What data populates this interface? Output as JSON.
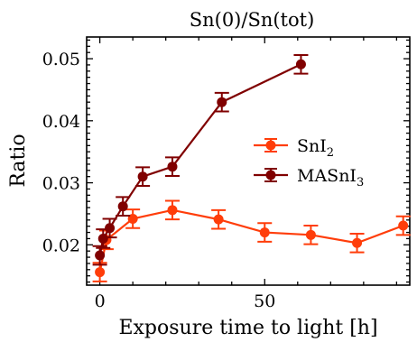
{
  "chart_data": {
    "type": "line",
    "title": "Sn(0)/Sn(tot)",
    "xlabel": "Exposure time to light [h]",
    "ylabel": "Ratio",
    "xlim": [
      -4,
      94
    ],
    "ylim": [
      0.0135,
      0.0535
    ],
    "x_ticks": [
      0,
      50
    ],
    "x_tick_labels": [
      "0",
      "50"
    ],
    "y_ticks": [
      0.02,
      0.03,
      0.04,
      0.05
    ],
    "y_tick_labels": [
      "0.02",
      "0.03",
      "0.04",
      "0.05"
    ],
    "legend_position": "center-right",
    "series": [
      {
        "name": "SnI",
        "name_subscript": "2",
        "color": "#ff3d0a",
        "x": [
          0,
          2,
          10,
          22,
          36,
          50,
          64,
          78,
          92
        ],
        "y": [
          0.0156,
          0.0208,
          0.0242,
          0.0256,
          0.0241,
          0.022,
          0.0216,
          0.0203,
          0.0231
        ],
        "err": [
          0.0015,
          0.0015,
          0.0015,
          0.0015,
          0.0015,
          0.0015,
          0.0015,
          0.0015,
          0.0015
        ]
      },
      {
        "name": "MASnI",
        "name_subscript": "3",
        "color": "#800000",
        "x": [
          0,
          1,
          3,
          7,
          13,
          22,
          37,
          61
        ],
        "y": [
          0.0183,
          0.021,
          0.0227,
          0.0262,
          0.031,
          0.0326,
          0.043,
          0.0491
        ],
        "err": [
          0.0015,
          0.0015,
          0.0015,
          0.0015,
          0.0015,
          0.0015,
          0.0015,
          0.0015
        ]
      }
    ]
  }
}
